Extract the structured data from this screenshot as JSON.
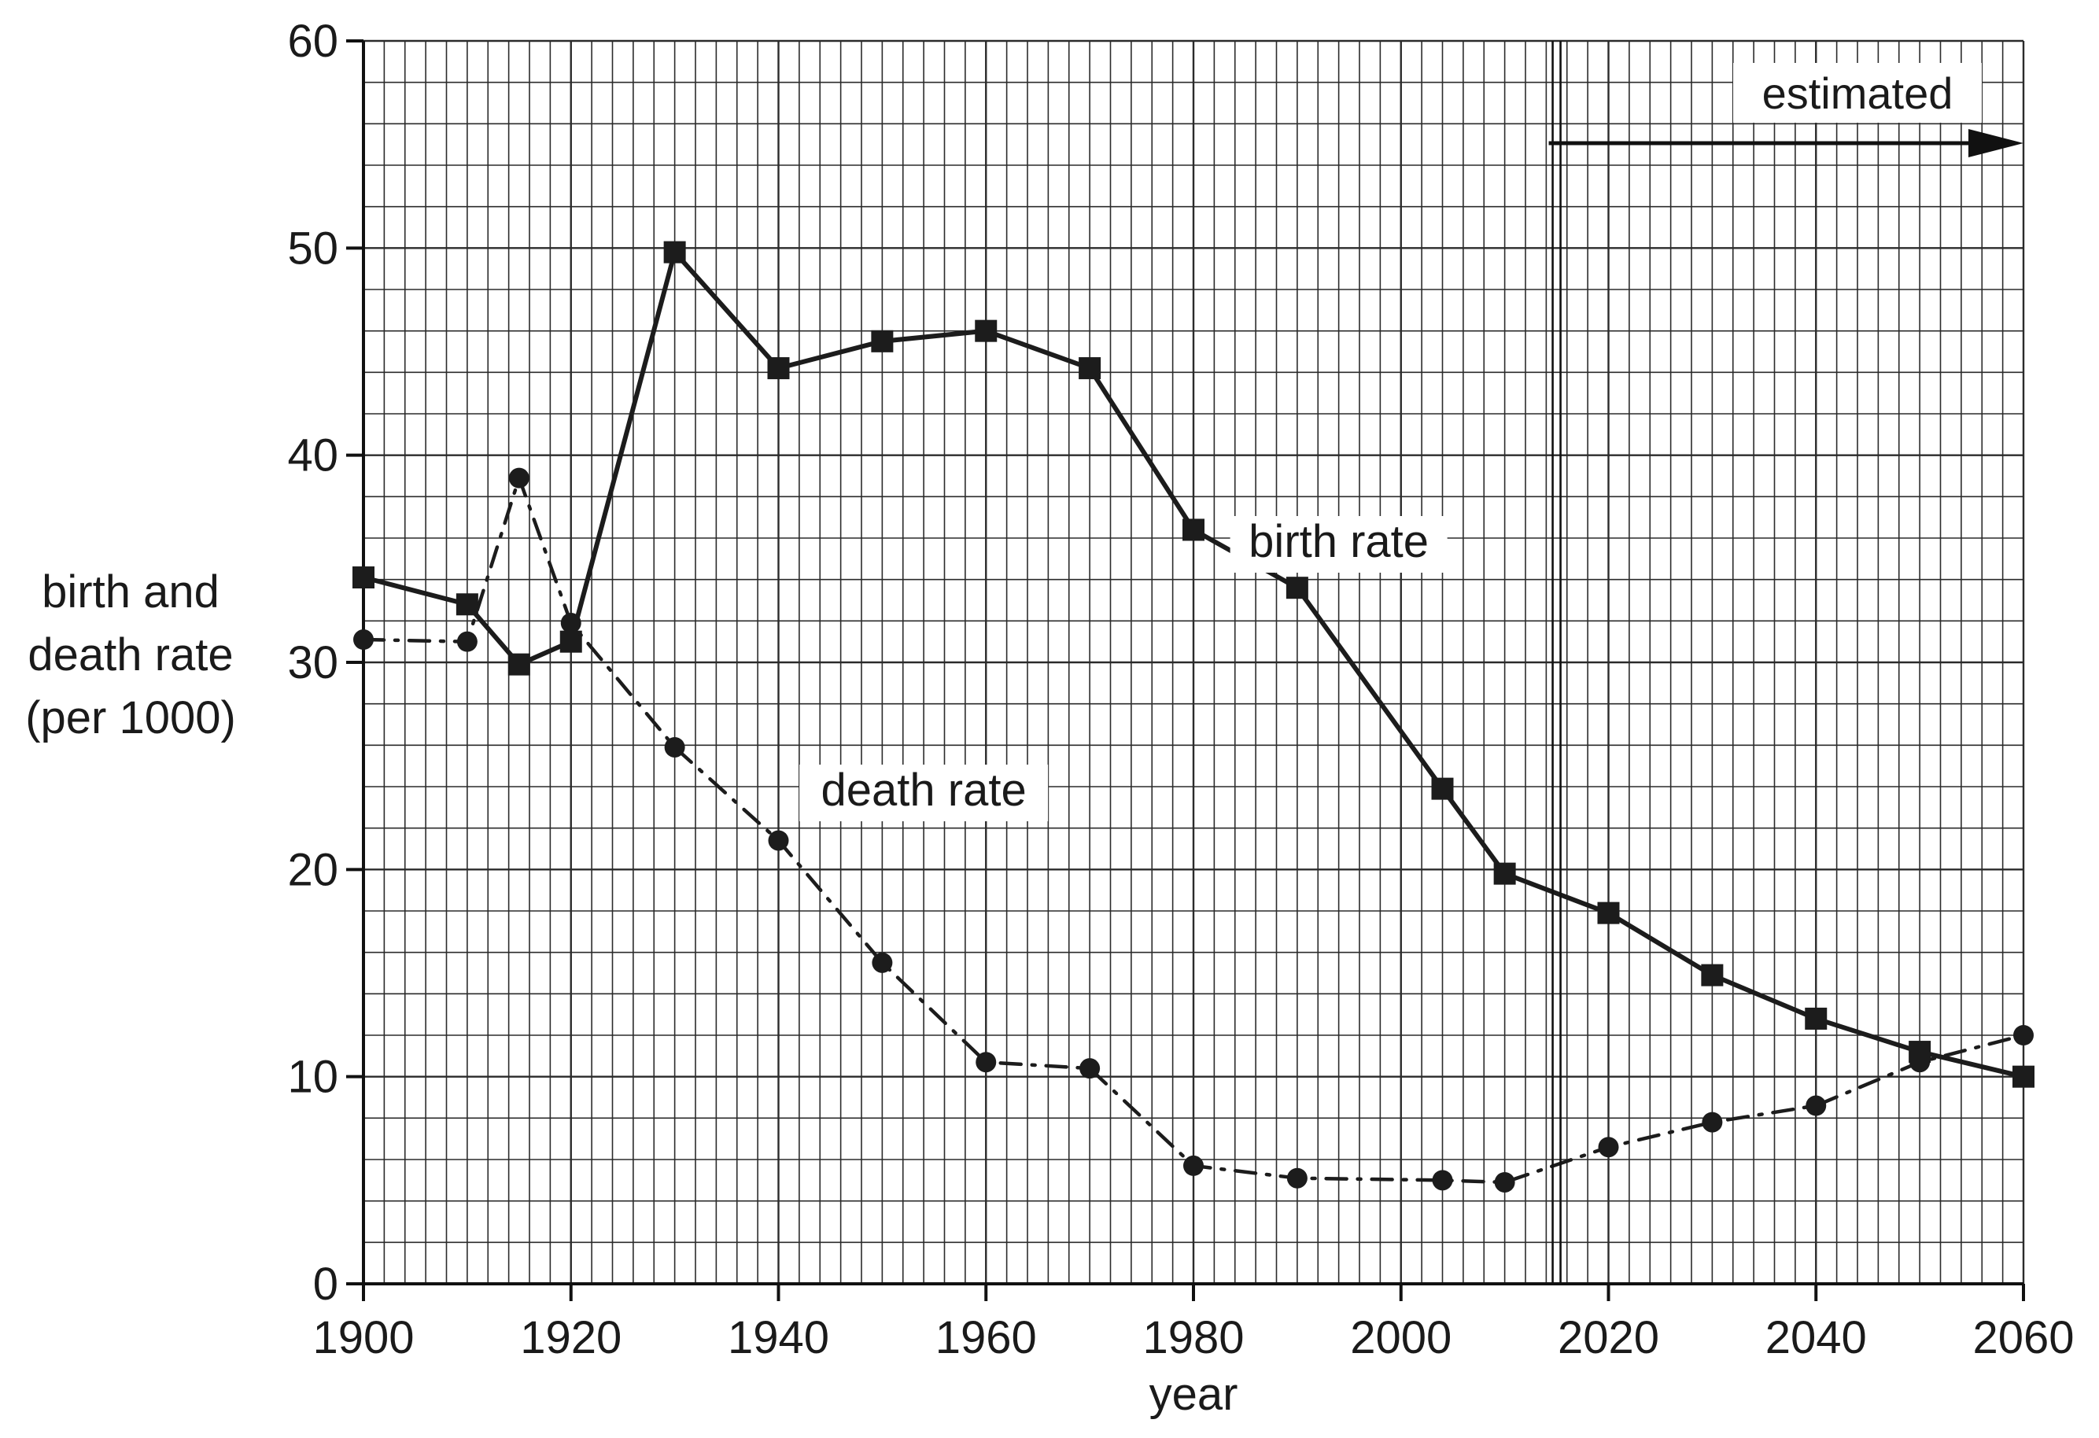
{
  "chart_data": {
    "type": "line",
    "title": "",
    "xlabel": "year",
    "ylabel": [
      "birth and",
      "death rate",
      "(per 1000)"
    ],
    "xlim": [
      1900,
      2060
    ],
    "ylim": [
      0,
      60
    ],
    "x_ticks": [
      "1900",
      "1920",
      "1940",
      "1960",
      "1980",
      "2000",
      "2020",
      "2040",
      "2060"
    ],
    "y_ticks": [
      "0",
      "10",
      "20",
      "30",
      "40",
      "50",
      "60"
    ],
    "grid": true,
    "estimated_from": 2015,
    "annotation": "estimated",
    "series": [
      {
        "name": "birth rate",
        "marker": "square",
        "points": [
          [
            1900,
            34.1
          ],
          [
            1910,
            32.8
          ],
          [
            1915,
            29.9
          ],
          [
            1920,
            31.0
          ],
          [
            1930,
            49.8
          ],
          [
            1940,
            44.2
          ],
          [
            1950,
            45.5
          ],
          [
            1960,
            46.0
          ],
          [
            1970,
            44.2
          ],
          [
            1980,
            36.4
          ],
          [
            1990,
            33.6
          ],
          [
            2004,
            23.9
          ],
          [
            2010,
            19.8
          ],
          [
            2020,
            17.9
          ],
          [
            2030,
            14.9
          ],
          [
            2040,
            12.8
          ],
          [
            2050,
            11.2
          ],
          [
            2060,
            10.0
          ]
        ]
      },
      {
        "name": "death rate",
        "marker": "circle",
        "points": [
          [
            1900,
            31.1
          ],
          [
            1910,
            31.0
          ],
          [
            1915,
            38.9
          ],
          [
            1920,
            31.9
          ],
          [
            1930,
            25.9
          ],
          [
            1940,
            21.4
          ],
          [
            1950,
            15.5
          ],
          [
            1960,
            10.7
          ],
          [
            1970,
            10.4
          ],
          [
            1980,
            5.7
          ],
          [
            1990,
            5.1
          ],
          [
            2004,
            5.0
          ],
          [
            2010,
            4.9
          ],
          [
            2020,
            6.6
          ],
          [
            2030,
            7.8
          ],
          [
            2040,
            8.6
          ],
          [
            2050,
            10.7
          ],
          [
            2060,
            12.0
          ]
        ]
      }
    ]
  }
}
